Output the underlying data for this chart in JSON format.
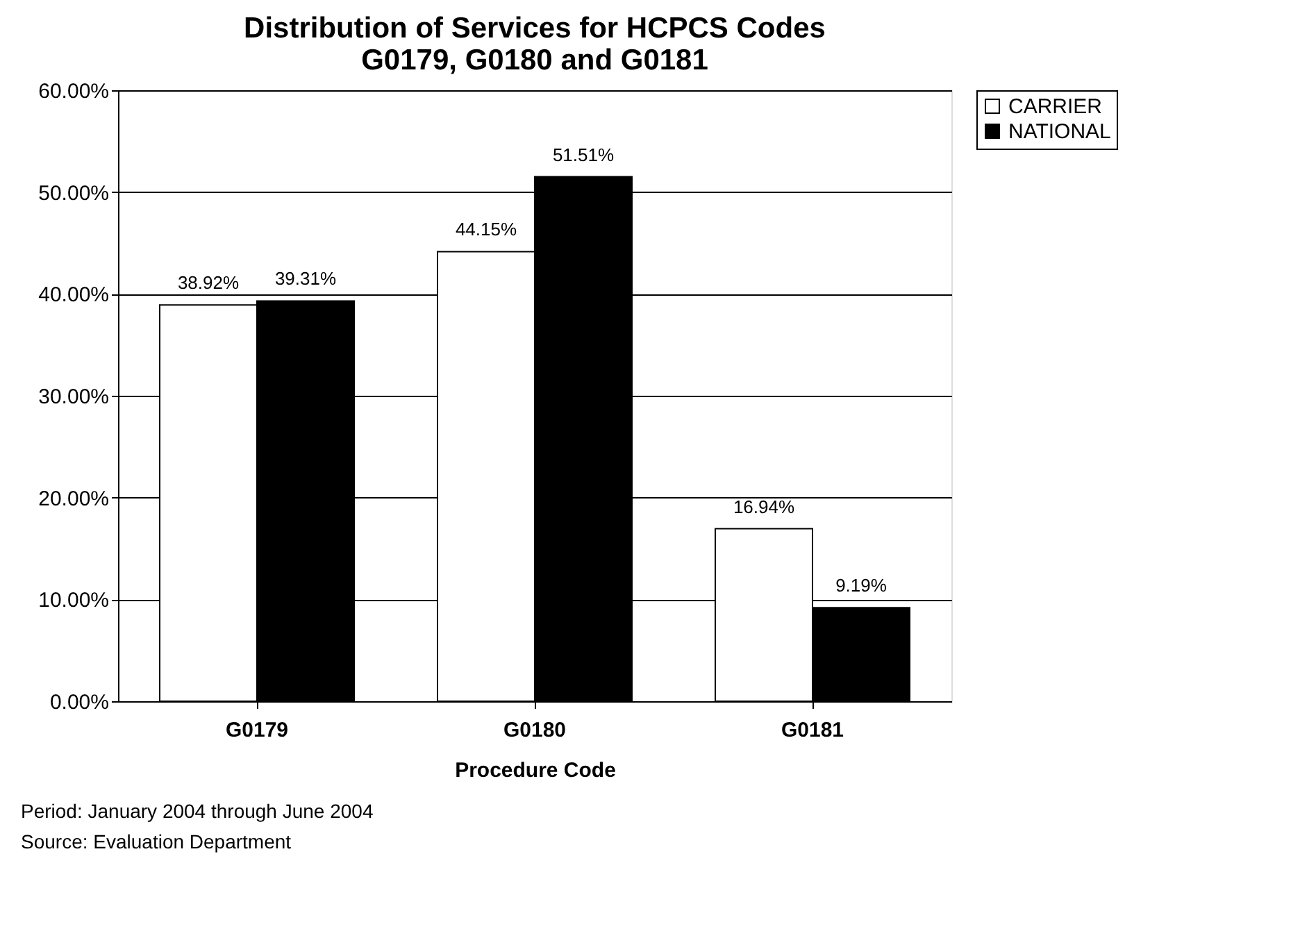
{
  "chart_data": {
    "type": "bar",
    "title": "Distribution of Services for HCPCS Codes\nG0179, G0180 and G0181",
    "xlabel": "Procedure Code",
    "categories": [
      "G0179",
      "G0180",
      "G0181"
    ],
    "series": [
      {
        "name": "CARRIER",
        "color": "#ffffff",
        "values": [
          38.92,
          44.15,
          16.94
        ],
        "value_labels": [
          "38.92%",
          "44.15%",
          "16.94%"
        ]
      },
      {
        "name": "NATIONAL",
        "color": "#000000",
        "values": [
          39.31,
          51.51,
          9.19
        ],
        "value_labels": [
          "39.31%",
          "51.51%",
          "9.19%"
        ]
      }
    ],
    "ylim": [
      0,
      60
    ],
    "yticks": [
      {
        "value": 0,
        "label": "0.00%"
      },
      {
        "value": 10,
        "label": "10.00%"
      },
      {
        "value": 20,
        "label": "20.00%"
      },
      {
        "value": 30,
        "label": "30.00%"
      },
      {
        "value": 40,
        "label": "40.00%"
      },
      {
        "value": 50,
        "label": "50.00%"
      },
      {
        "value": 60,
        "label": "60.00%"
      }
    ],
    "grid": "y",
    "legend": "right",
    "annotations": [
      "Period:  January 2004 through June 2004",
      "Source:  Evaluation Department"
    ]
  }
}
